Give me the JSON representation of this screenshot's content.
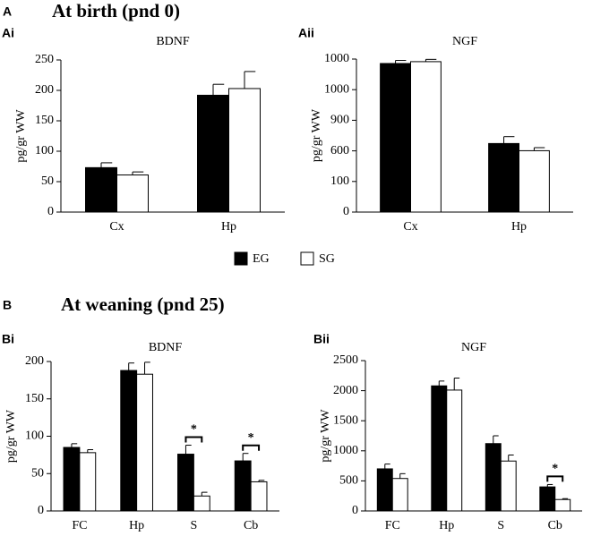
{
  "sections": [
    {
      "letter": "A",
      "title": "At birth (pnd 0)"
    },
    {
      "letter": "B",
      "title": "At weaning (pnd 25)"
    }
  ],
  "chart_data": [
    {
      "type": "bar",
      "panel": "Ai",
      "title": "BDNF",
      "ylabel": "pg/gr WW",
      "categories": [
        "Cx",
        "Hp"
      ],
      "series": [
        {
          "name": "EG",
          "color": "#000000",
          "values": [
            73,
            192
          ],
          "errors": [
            8,
            18
          ]
        },
        {
          "name": "SG",
          "color": "#ffffff",
          "values": [
            61,
            203
          ],
          "errors": [
            5,
            28
          ]
        }
      ],
      "ylim": [
        0,
        250
      ],
      "yticks": [
        0,
        50,
        100,
        150,
        200,
        250
      ],
      "annotations": []
    },
    {
      "type": "bar",
      "panel": "Aii",
      "title": "NGF",
      "ylabel": "pg/gr WW",
      "categories": [
        "Cx",
        "Hp"
      ],
      "series": [
        {
          "color": "#000000",
          "values": [
            971,
            448
          ],
          "errors": [
            20,
            45
          ]
        },
        {
          "color": "#ffffff",
          "values": [
            983,
            401
          ],
          "errors": [
            15,
            20
          ]
        }
      ],
      "ylim": [
        0,
        1000
      ],
      "yticks": [
        0,
        {
          "value": 200,
          "label": "100"
        },
        {
          "value": 400,
          "label": "600"
        },
        {
          "value": 600,
          "label": "900"
        },
        {
          "value": 800,
          "label": "1000"
        },
        1000
      ],
      "annotations": []
    },
    {
      "type": "bar",
      "panel": "Bi",
      "title": "BDNF",
      "ylabel": "pg/gr WW",
      "categories": [
        "FC",
        "Hp",
        "S",
        "Cb"
      ],
      "series": [
        {
          "color": "#000000",
          "values": [
            85,
            188,
            76,
            67
          ],
          "errors": [
            5,
            10,
            12,
            10
          ]
        },
        {
          "color": "#ffffff",
          "values": [
            78,
            183,
            20,
            39
          ],
          "errors": [
            4,
            16,
            5,
            2
          ]
        }
      ],
      "ylim": [
        0,
        200
      ],
      "yticks": [
        0,
        50,
        100,
        150,
        200
      ],
      "annotations": [
        {
          "text": "*",
          "category": "S"
        },
        {
          "text": "*",
          "category": "Cb"
        }
      ]
    },
    {
      "type": "bar",
      "panel": "Bii",
      "title": "NGF",
      "ylabel": "pg/gr WW",
      "categories": [
        "FC",
        "Hp",
        "S",
        "Cb"
      ],
      "series": [
        {
          "color": "#000000",
          "values": [
            700,
            2080,
            1120,
            400
          ],
          "errors": [
            80,
            80,
            130,
            40
          ]
        },
        {
          "color": "#ffffff",
          "values": [
            540,
            2010,
            830,
            190
          ],
          "errors": [
            80,
            200,
            100,
            15
          ]
        }
      ],
      "ylim": [
        0,
        2500
      ],
      "yticks": [
        0,
        500,
        1000,
        1500,
        2000,
        2500
      ],
      "annotations": [
        {
          "text": "*",
          "category": "Cb"
        }
      ]
    }
  ]
}
